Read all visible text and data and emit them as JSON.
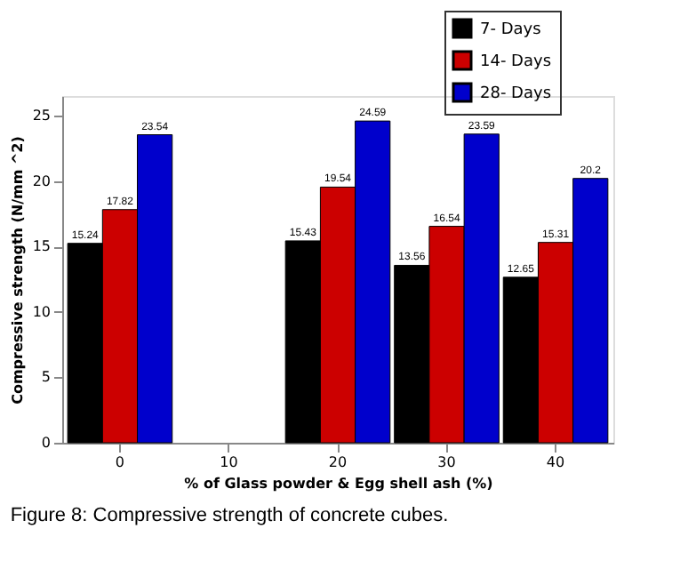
{
  "chart_data": {
    "type": "bar",
    "categories": [
      "0",
      "10",
      "20",
      "30",
      "40"
    ],
    "series": [
      {
        "name": "7- Days",
        "color": "#000000",
        "values": [
          15.24,
          null,
          15.43,
          13.56,
          12.65
        ]
      },
      {
        "name": "14- Days",
        "color": "#cc0000",
        "values": [
          17.82,
          null,
          19.54,
          16.54,
          15.31
        ]
      },
      {
        "name": "28- Days",
        "color": "#0000cc",
        "values": [
          23.54,
          null,
          24.59,
          23.59,
          20.2
        ]
      }
    ],
    "xlabel": "% of Glass powder & Egg shell ash (%)",
    "ylabel": "Compressive strength (N/mm ^2)",
    "ylim": [
      0,
      26.5
    ],
    "yticks": [
      0,
      5,
      10,
      15,
      20,
      25
    ],
    "data_labels": true,
    "legend": "top right",
    "grid": false,
    "annotations": [
      "Figure 8: Compressive strength of concrete cubes."
    ]
  }
}
